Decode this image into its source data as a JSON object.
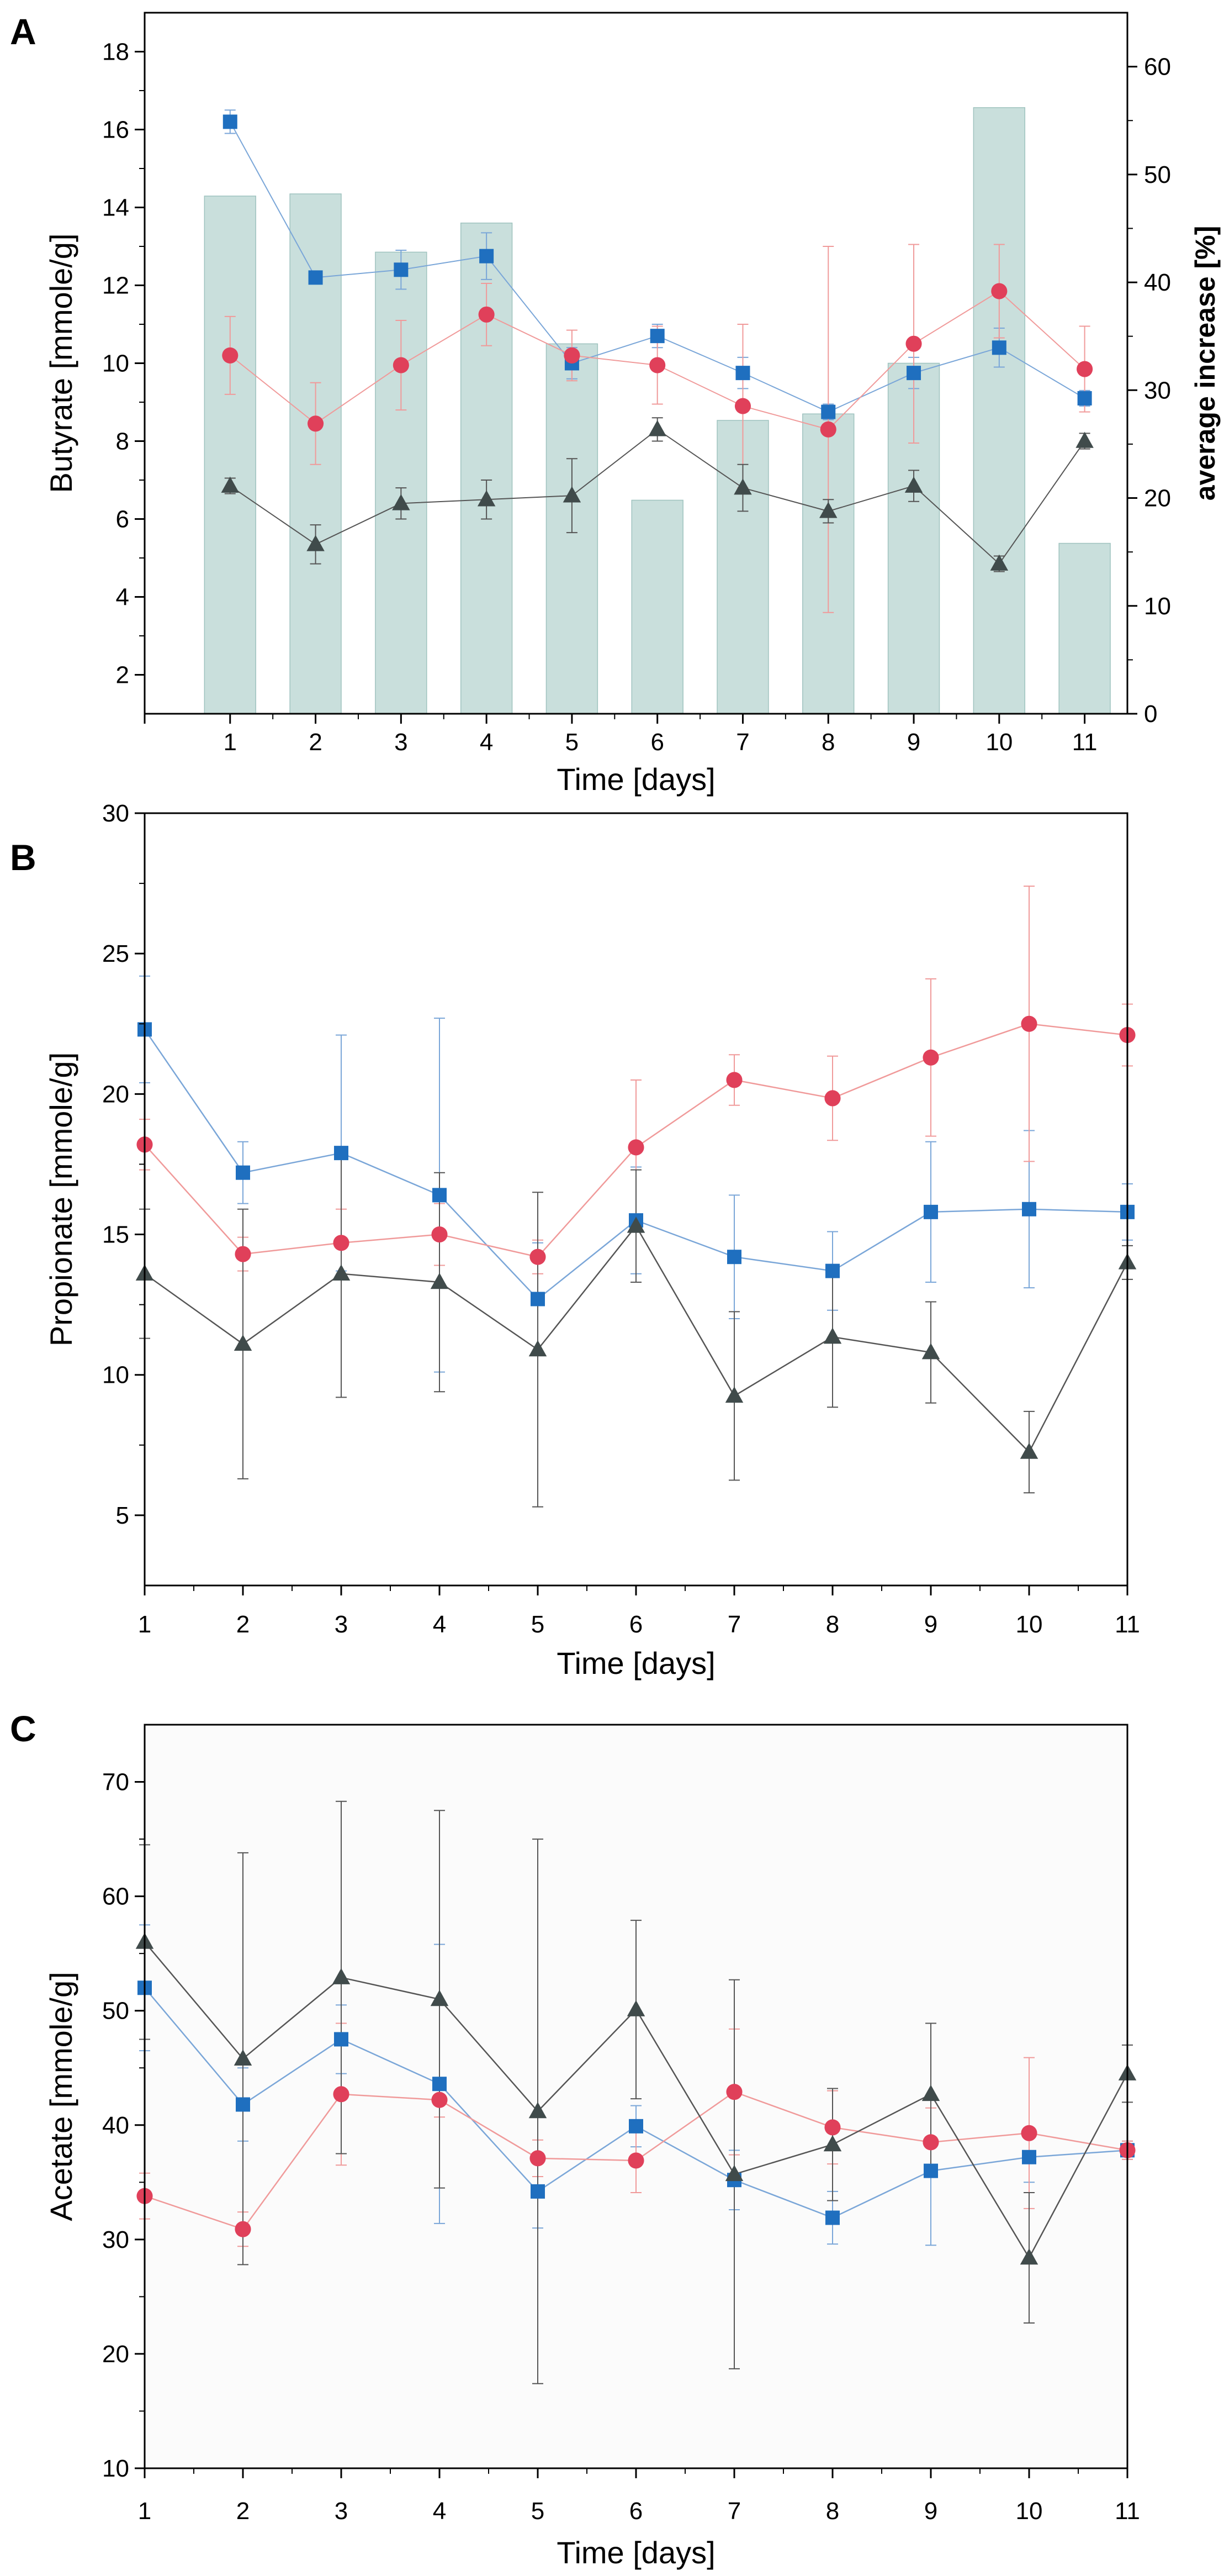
{
  "chart_data": [
    {
      "panel": "A",
      "type": "line",
      "xlabel": "Time [days]",
      "ylabel": "Butyrate [mmole/g]",
      "y2label": "average increase [%]",
      "xlim": [
        0,
        11.5
      ],
      "ylim": [
        1,
        19
      ],
      "y2lim": [
        0,
        65
      ],
      "xticks": [
        1,
        2,
        3,
        4,
        5,
        6,
        7,
        8,
        9,
        10,
        11
      ],
      "yticks": [
        2,
        4,
        6,
        8,
        10,
        12,
        14,
        16,
        18
      ],
      "y2ticks": [
        0,
        10,
        20,
        30,
        40,
        50,
        60
      ],
      "categories": [
        1,
        2,
        3,
        4,
        5,
        6,
        7,
        8,
        9,
        10,
        11
      ],
      "bars": {
        "name": "average increase",
        "axis": "right",
        "color": "#c9dfdc",
        "values": [
          48,
          48.2,
          42.8,
          45.5,
          34.3,
          19.8,
          27.2,
          27.8,
          32.5,
          56.2,
          15.8
        ]
      },
      "series": [
        {
          "name": "blue",
          "marker": "square",
          "color": "#1f6fbf",
          "line": "#7aa6d8",
          "values": [
            16.2,
            12.2,
            12.4,
            12.75,
            10.0,
            10.7,
            9.75,
            8.75,
            9.75,
            10.4,
            9.1
          ],
          "errors": [
            0.3,
            0.15,
            0.5,
            0.6,
            0.4,
            0.3,
            0.4,
            0.2,
            0.4,
            0.5,
            0.2
          ]
        },
        {
          "name": "red",
          "marker": "circle",
          "color": "#e0405a",
          "line": "#f09a9a",
          "values": [
            10.2,
            8.45,
            9.95,
            11.25,
            10.2,
            9.95,
            8.9,
            8.3,
            10.5,
            11.85,
            9.85
          ],
          "errors": [
            1.0,
            1.05,
            1.15,
            0.8,
            0.65,
            1.0,
            2.1,
            4.7,
            2.55,
            1.2,
            1.1
          ]
        },
        {
          "name": "black",
          "marker": "triangle",
          "color": "#404b4b",
          "line": "#555555",
          "values": [
            6.85,
            5.35,
            6.4,
            6.5,
            6.6,
            8.3,
            6.8,
            6.2,
            6.85,
            4.85,
            8.0
          ],
          "errors": [
            0.2,
            0.5,
            0.4,
            0.5,
            0.95,
            0.3,
            0.6,
            0.3,
            0.4,
            0.2,
            0.2
          ]
        }
      ]
    },
    {
      "panel": "B",
      "type": "line",
      "xlabel": "Time [days]",
      "ylabel": "Propionate [mmole/g]",
      "xlim": [
        1,
        11
      ],
      "ylim": [
        2.5,
        30
      ],
      "xticks": [
        1,
        2,
        3,
        4,
        5,
        6,
        7,
        8,
        9,
        10,
        11
      ],
      "yticks": [
        5,
        10,
        15,
        20,
        25,
        30
      ],
      "categories": [
        1,
        2,
        3,
        4,
        5,
        6,
        7,
        8,
        9,
        10,
        11
      ],
      "series": [
        {
          "name": "blue",
          "marker": "square",
          "color": "#1f6fbf",
          "line": "#7aa6d8",
          "values": [
            22.3,
            17.2,
            17.9,
            16.4,
            12.7,
            15.5,
            14.2,
            13.7,
            15.8,
            15.9,
            15.8
          ],
          "errors": [
            1.9,
            1.1,
            4.2,
            6.3,
            2.0,
            1.9,
            2.2,
            1.4,
            2.5,
            2.8,
            1.0
          ]
        },
        {
          "name": "red",
          "marker": "circle",
          "color": "#e0405a",
          "line": "#f09a9a",
          "values": [
            18.2,
            14.3,
            14.7,
            15.0,
            14.2,
            18.1,
            20.5,
            19.85,
            21.3,
            22.5,
            22.1
          ],
          "errors": [
            0.9,
            0.6,
            1.2,
            1.1,
            0.6,
            2.4,
            0.9,
            1.5,
            2.8,
            4.9,
            1.1
          ]
        },
        {
          "name": "black",
          "marker": "triangle",
          "color": "#404b4b",
          "line": "#555555",
          "values": [
            13.6,
            11.1,
            13.6,
            13.3,
            10.9,
            15.3,
            9.25,
            11.35,
            10.8,
            7.25,
            14.0
          ],
          "errors": [
            2.3,
            4.8,
            4.4,
            3.9,
            5.6,
            2.0,
            3.0,
            2.5,
            1.8,
            1.45,
            0.6
          ]
        }
      ]
    },
    {
      "panel": "C",
      "type": "line",
      "xlabel": "Time [days]",
      "ylabel": "Acetate [mmole/g]",
      "xlim": [
        1,
        11
      ],
      "ylim": [
        10,
        75
      ],
      "xticks": [
        1,
        2,
        3,
        4,
        5,
        6,
        7,
        8,
        9,
        10,
        11
      ],
      "yticks": [
        10,
        20,
        30,
        40,
        50,
        60,
        70
      ],
      "categories": [
        1,
        2,
        3,
        4,
        5,
        6,
        7,
        8,
        9,
        10,
        11
      ],
      "series": [
        {
          "name": "blue",
          "marker": "square",
          "color": "#1f6fbf",
          "line": "#7aa6d8",
          "values": [
            52.0,
            41.8,
            47.5,
            43.6,
            34.2,
            39.9,
            35.2,
            31.9,
            36.0,
            37.2,
            37.8
          ],
          "errors": [
            5.5,
            3.2,
            3.0,
            12.2,
            3.2,
            1.8,
            2.6,
            2.3,
            6.5,
            2.2,
            0.8
          ]
        },
        {
          "name": "red",
          "marker": "circle",
          "color": "#e0405a",
          "line": "#f09a9a",
          "values": [
            33.8,
            30.9,
            42.7,
            42.2,
            37.1,
            36.9,
            42.9,
            39.8,
            38.5,
            39.3,
            37.8
          ],
          "errors": [
            2.0,
            1.5,
            6.2,
            1.5,
            1.6,
            2.8,
            5.5,
            3.2,
            3.0,
            6.6,
            0.8
          ]
        },
        {
          "name": "black",
          "marker": "triangle",
          "color": "#404b4b",
          "line": "#555555",
          "values": [
            56.0,
            45.8,
            52.9,
            51.0,
            41.2,
            50.1,
            35.7,
            38.3,
            42.7,
            28.4,
            44.5
          ],
          "errors": [
            8.5,
            18.0,
            15.4,
            16.5,
            23.8,
            7.8,
            17.0,
            4.9,
            6.2,
            5.7,
            2.5
          ]
        }
      ]
    }
  ]
}
